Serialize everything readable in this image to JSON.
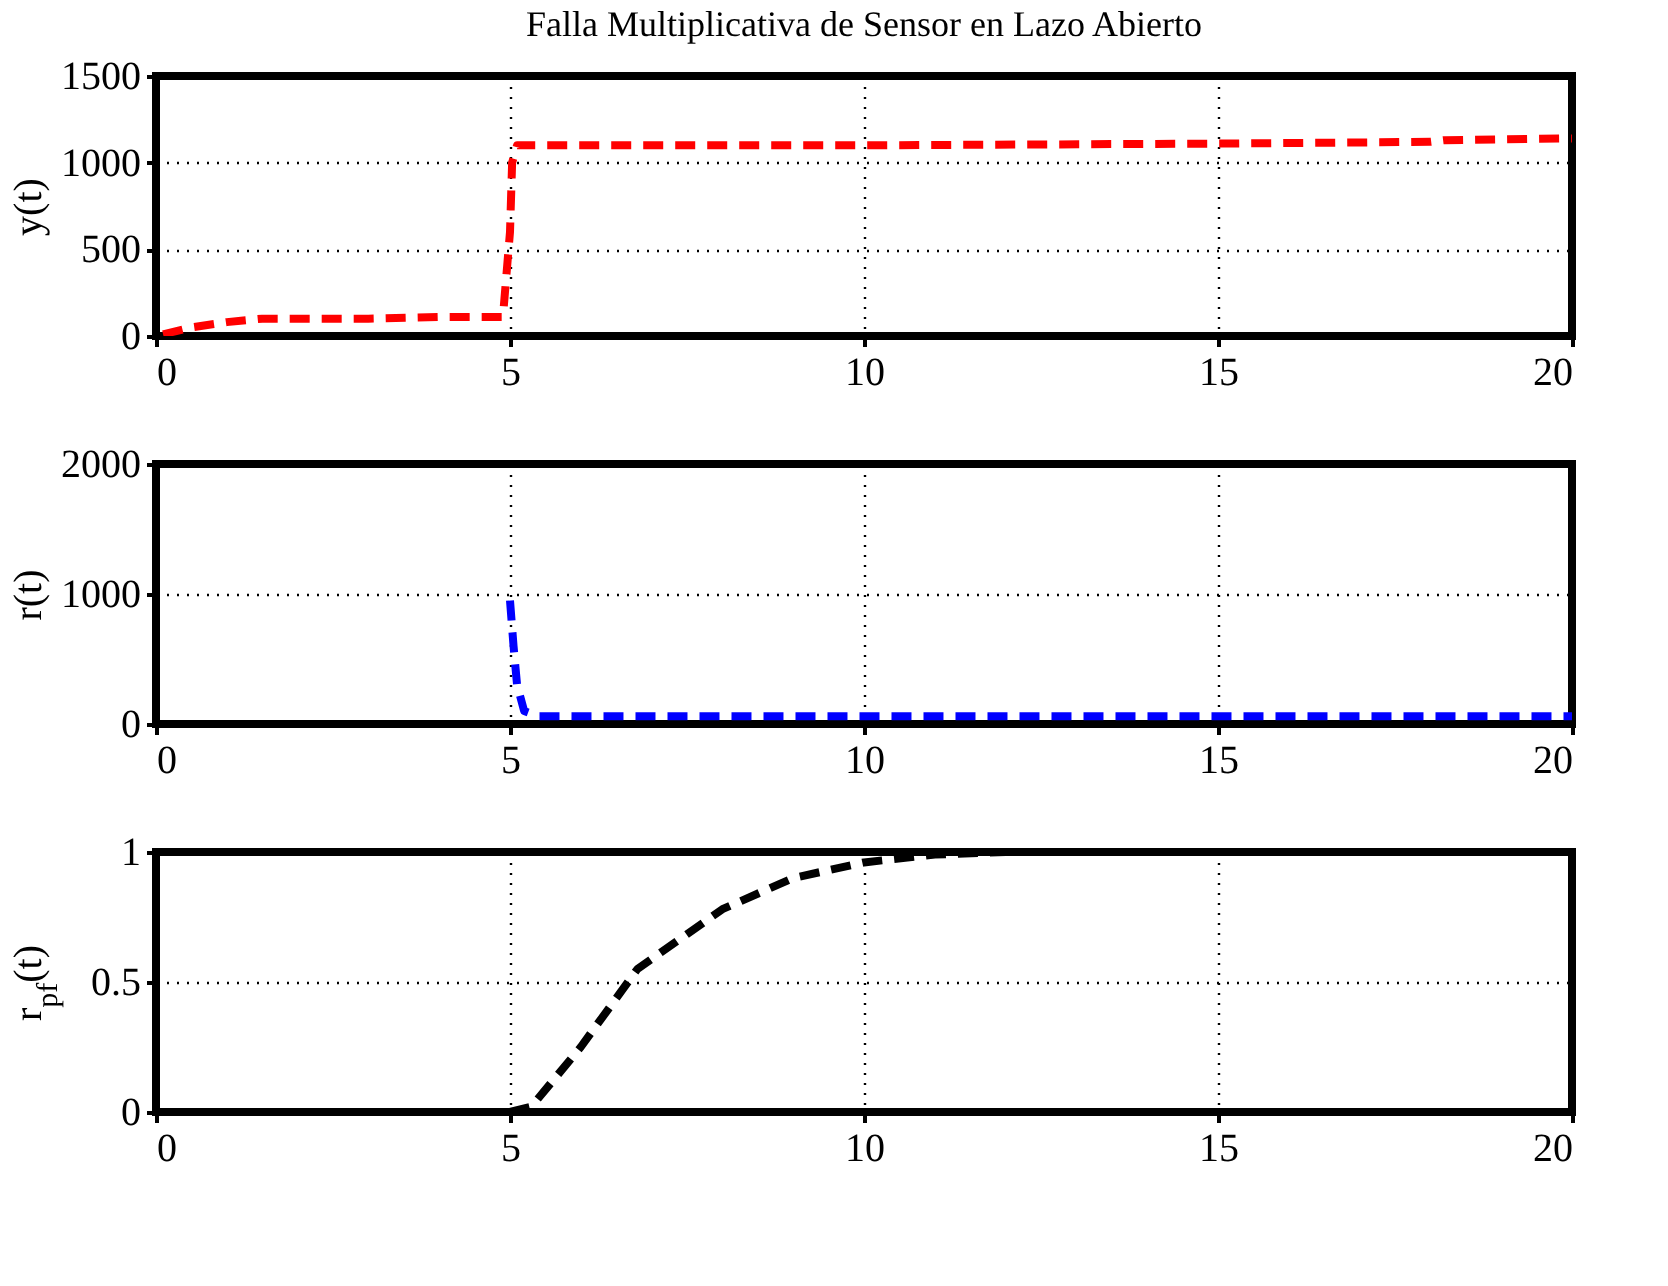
{
  "chart_data": [
    {
      "type": "line",
      "title": "Falla Multiplicativa de Sensor en Lazo Abierto",
      "ylabel": "y(t)",
      "xlim": [
        0,
        20
      ],
      "xticks": [
        0,
        5,
        10,
        15,
        20
      ],
      "ylim": [
        0,
        1500
      ],
      "yticks": [
        0,
        500,
        1000,
        1500
      ],
      "grid": true,
      "line_style": "dashed",
      "series": [
        {
          "color": "#ff0000",
          "x": [
            0.1,
            0.5,
            1,
            1.5,
            2,
            3,
            4,
            4.9,
            5,
            5.03,
            5.1,
            10,
            15,
            18,
            18.2,
            20
          ],
          "values": [
            10,
            50,
            80,
            100,
            100,
            100,
            110,
            110,
            600,
            1000,
            1100,
            1100,
            1110,
            1120,
            1130,
            1140
          ]
        }
      ]
    },
    {
      "type": "line",
      "ylabel": "r(t)",
      "xlim": [
        0,
        20
      ],
      "xticks": [
        0,
        5,
        10,
        15,
        20
      ],
      "ylim": [
        0,
        2000
      ],
      "yticks": [
        0,
        1000,
        2000
      ],
      "grid": true,
      "line_style": "dashed",
      "series": [
        {
          "color": "#0000ff",
          "x": [
            5,
            5.05,
            5.1,
            5.2,
            5.4,
            10,
            15,
            20
          ],
          "values": [
            950,
            600,
            300,
            100,
            60,
            60,
            60,
            60
          ]
        }
      ]
    },
    {
      "type": "line",
      "ylabel": "r$_{pf}$(t)",
      "xlim": [
        0,
        20
      ],
      "xticks": [
        0,
        5,
        10,
        15,
        20
      ],
      "ylim": [
        0,
        1
      ],
      "yticks": [
        0,
        0.5,
        1
      ],
      "grid": true,
      "line_style": "dashed",
      "series": [
        {
          "color": "#000000",
          "x": [
            5,
            5.3,
            6,
            6.8,
            8,
            9,
            10,
            11,
            12,
            13
          ],
          "values": [
            0,
            0.02,
            0.25,
            0.55,
            0.78,
            0.9,
            0.96,
            0.99,
            1,
            1
          ]
        }
      ]
    }
  ]
}
